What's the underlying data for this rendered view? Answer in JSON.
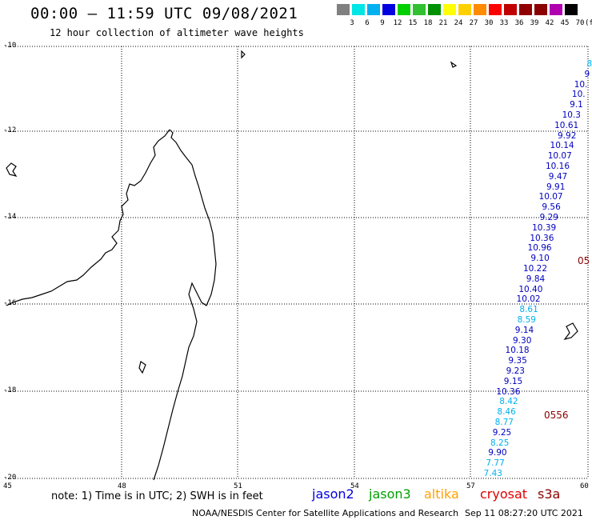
{
  "title": "00:00 – 11:59 UTC 09/08/2021",
  "subtitle": "12 hour collection of altimeter wave heights",
  "legend": {
    "unit": "(ft)",
    "colors": [
      "#808080",
      "#00e5e5",
      "#00b0f0",
      "#0000e0",
      "#00d000",
      "#30c030",
      "#009000",
      "#ffff00",
      "#ffd000",
      "#ff8c00",
      "#ff0000",
      "#c00000",
      "#900000",
      "#8b0000",
      "#b000b0",
      "#000000"
    ],
    "labels": [
      "3",
      "6",
      "9",
      "12",
      "15",
      "18",
      "21",
      "24",
      "27",
      "30",
      "33",
      "36",
      "39",
      "42",
      "45",
      "70"
    ]
  },
  "axes": {
    "lat_labels": [
      "-10",
      "-12",
      "-14",
      "-16",
      "-18",
      "-20"
    ],
    "lon_labels": [
      "45",
      "48",
      "51",
      "54",
      "57",
      "60"
    ]
  },
  "observations": [
    {
      "value": "8",
      "color": "#00b0f0"
    },
    {
      "value": "9",
      "color": "#0000c0"
    },
    {
      "value": "10.",
      "color": "#0000c0"
    },
    {
      "value": "10.",
      "color": "#0000c0"
    },
    {
      "value": "9.1",
      "color": "#0000c0"
    },
    {
      "value": "10.3",
      "color": "#0000c0"
    },
    {
      "value": "10.61",
      "color": "#0000c0"
    },
    {
      "value": "9.92",
      "color": "#0000c0"
    },
    {
      "value": "10.14",
      "color": "#0000c0"
    },
    {
      "value": "10.07",
      "color": "#0000c0"
    },
    {
      "value": "10.16",
      "color": "#0000c0"
    },
    {
      "value": "9.47",
      "color": "#0000c0"
    },
    {
      "value": "9.91",
      "color": "#0000c0"
    },
    {
      "value": "10.07",
      "color": "#0000c0"
    },
    {
      "value": "9.56",
      "color": "#0000c0"
    },
    {
      "value": "9.29",
      "color": "#0000c0"
    },
    {
      "value": "10.39",
      "color": "#0000c0"
    },
    {
      "value": "10.36",
      "color": "#0000c0"
    },
    {
      "value": "10.96",
      "color": "#0000c0"
    },
    {
      "value": "9.10",
      "color": "#0000c0"
    },
    {
      "value": "10.22",
      "color": "#0000c0"
    },
    {
      "value": "9.84",
      "color": "#0000c0"
    },
    {
      "value": "10.40",
      "color": "#0000c0"
    },
    {
      "value": "10.02",
      "color": "#0000c0"
    },
    {
      "value": "8.61",
      "color": "#00b0f0"
    },
    {
      "value": "8.59",
      "color": "#00b0f0"
    },
    {
      "value": "9.14",
      "color": "#0000c0"
    },
    {
      "value": "9.30",
      "color": "#0000c0"
    },
    {
      "value": "10.18",
      "color": "#0000c0"
    },
    {
      "value": "9.35",
      "color": "#0000c0"
    },
    {
      "value": "9.23",
      "color": "#0000c0"
    },
    {
      "value": "9.15",
      "color": "#0000c0"
    },
    {
      "value": "10.36",
      "color": "#0000c0"
    },
    {
      "value": "8.42",
      "color": "#00b0f0"
    },
    {
      "value": "8.46",
      "color": "#00b0f0"
    },
    {
      "value": "8.77",
      "color": "#00b0f0"
    },
    {
      "value": "9.25",
      "color": "#0000c0"
    },
    {
      "value": "8.25",
      "color": "#00b0f0"
    },
    {
      "value": "9.90",
      "color": "#0000c0"
    },
    {
      "value": "7.77",
      "color": "#00b0f0"
    },
    {
      "value": "7.43",
      "color": "#00b0f0"
    }
  ],
  "pass_ids": [
    {
      "value": "05",
      "color": "#8b0000"
    },
    {
      "value": "0556",
      "color": "#8b0000"
    }
  ],
  "note": "note: 1) Time is in UTC; 2) SWH is in feet",
  "missions": [
    {
      "name": "jason2",
      "color": "#0000e0"
    },
    {
      "name": "jason3",
      "color": "#00a000"
    },
    {
      "name": "altika",
      "color": "#ffa000"
    },
    {
      "name": "cryosat",
      "color": "#e00000"
    },
    {
      "name": "s3a",
      "color": "#8b0000"
    }
  ],
  "credit": "NOAA/NESDIS Center for Satellite Applications and Research",
  "timestamp": "Sep 11 08:27:20 UTC 2021"
}
